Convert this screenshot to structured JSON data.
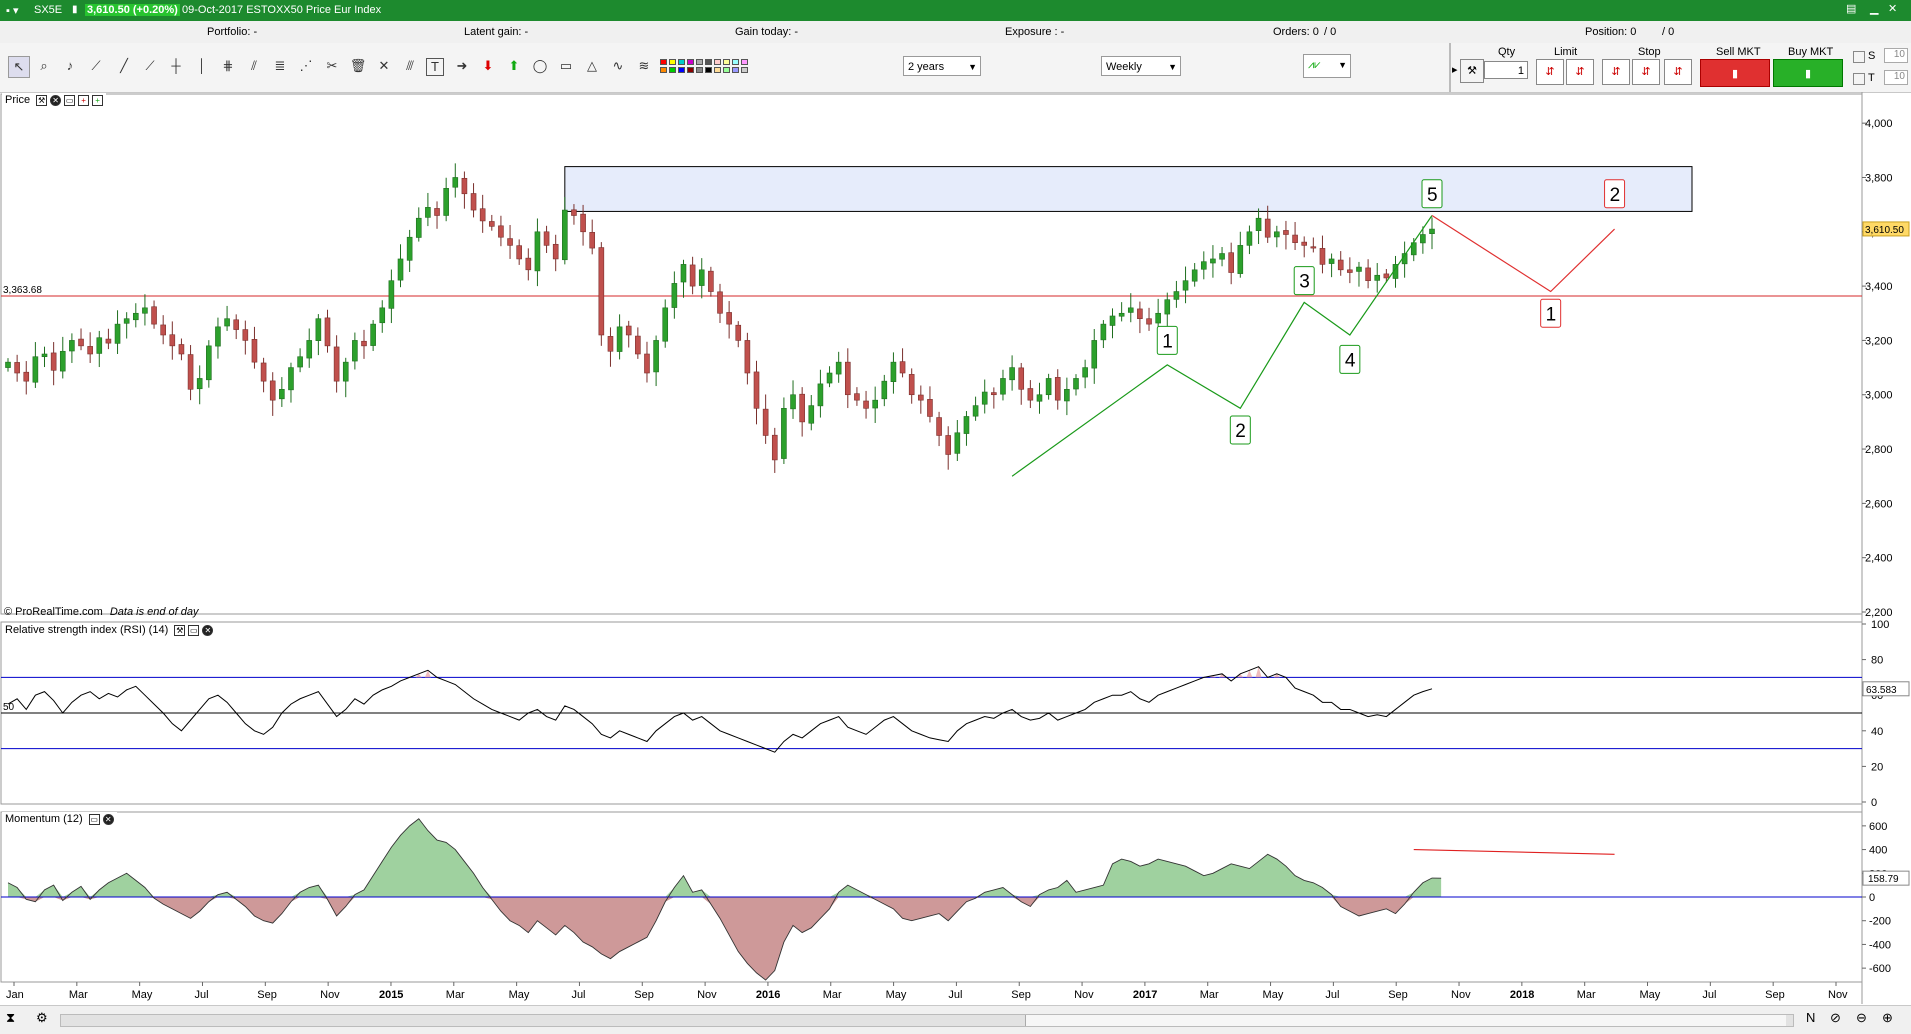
{
  "window": {
    "symbol": "SX5E",
    "price_change": "3,610.50 (+0.20%)",
    "title": "09-Oct-2017 ESTOXX50 Price Eur Index"
  },
  "infobar": {
    "portfolio": "Portfolio: -",
    "latent_gain": "Latent gain: -",
    "gain_today": "Gain today: -",
    "exposure": "Exposure : -",
    "orders": "Orders: 0",
    "orders_slash": "/ 0",
    "position": "Position: 0",
    "position_slash": "/ 0"
  },
  "toolbar": {
    "period": "2 years",
    "interval": "Weekly",
    "qty_label": "Qty",
    "qty_value": "1",
    "limit_label": "Limit",
    "stop_label": "Stop",
    "sell_label": "Sell MKT",
    "buy_label": "Buy MKT",
    "s_label": "S",
    "t_label": "T",
    "s_value": "10",
    "t_value": "10"
  },
  "colors": {
    "up": "#2ca02c",
    "down": "#c0504d",
    "support": "#d62728",
    "zone_fill": "#e6ecfb",
    "rsi_line": "#000000",
    "band": "#0000cc"
  },
  "price_panel": {
    "title": "Price",
    "footer_copyright": "© ProRealTime.com",
    "footer_note": "Data is end of day"
  },
  "rsi_panel": {
    "title": "Relative strength index (RSI) (14)"
  },
  "momentum_panel": {
    "title": "Momentum (12)"
  },
  "chart_data": [
    {
      "type": "candlestick",
      "title": "Price",
      "ylim": [
        2200,
        4100
      ],
      "yticks": [
        "4,000",
        "3,800",
        "3,600",
        "3,400",
        "3,200",
        "3,000",
        "2,800",
        "2,600",
        "2,400",
        "2,200"
      ],
      "last_value_label": "3,610.50",
      "last_value": 3610.5,
      "support_level": 3363.68,
      "support_label": "3,363.68",
      "resistance_zone": [
        3675,
        3840
      ],
      "weekly_close": [
        3120,
        3080,
        3050,
        3140,
        3150,
        3090,
        3160,
        3200,
        3180,
        3150,
        3210,
        3190,
        3260,
        3280,
        3300,
        3320,
        3260,
        3220,
        3180,
        3150,
        3020,
        3060,
        3180,
        3250,
        3280,
        3240,
        3200,
        3120,
        3050,
        2980,
        3020,
        3100,
        3140,
        3200,
        3280,
        3180,
        3050,
        3120,
        3200,
        3180,
        3260,
        3320,
        3420,
        3500,
        3580,
        3650,
        3690,
        3660,
        3760,
        3800,
        3740,
        3680,
        3640,
        3620,
        3580,
        3550,
        3500,
        3460,
        3600,
        3550,
        3500,
        3680,
        3660,
        3600,
        3540,
        3220,
        3160,
        3250,
        3220,
        3150,
        3080,
        3200,
        3320,
        3410,
        3480,
        3400,
        3460,
        3380,
        3300,
        3260,
        3200,
        3080,
        2950,
        2850,
        2760,
        2950,
        3000,
        2900,
        2960,
        3040,
        3080,
        3120,
        3000,
        2980,
        2950,
        2980,
        3050,
        3120,
        3080,
        3000,
        2980,
        2920,
        2850,
        2780,
        2860,
        2920,
        2960,
        3010,
        3000,
        3060,
        3100,
        3020,
        2980,
        3000,
        3060,
        2980,
        3020,
        3060,
        3100,
        3200,
        3260,
        3290,
        3300,
        3320,
        3280,
        3260,
        3300,
        3350,
        3380,
        3420,
        3460,
        3490,
        3500,
        3520,
        3450,
        3550,
        3600,
        3650,
        3580,
        3600,
        3590,
        3560,
        3550,
        3540,
        3480,
        3500,
        3460,
        3450,
        3470,
        3420,
        3440,
        3430,
        3480,
        3520,
        3560,
        3590,
        3610
      ],
      "wave_labels_green": [
        "1",
        "2",
        "3",
        "4",
        "5"
      ],
      "wave_labels_red": [
        "1",
        "2"
      ]
    },
    {
      "type": "line",
      "title": "Relative strength index (RSI) (14)",
      "ylim": [
        0,
        100
      ],
      "yticks": [
        "100",
        "80",
        "60",
        "40",
        "20",
        "0"
      ],
      "mid_label": "50",
      "bands": [
        70,
        50,
        30
      ],
      "last_value_label": "63.583",
      "values": [
        55,
        58,
        52,
        60,
        62,
        57,
        50,
        56,
        60,
        62,
        58,
        61,
        59,
        63,
        65,
        60,
        55,
        50,
        44,
        40,
        46,
        52,
        58,
        60,
        56,
        50,
        44,
        40,
        38,
        42,
        50,
        55,
        58,
        60,
        62,
        55,
        48,
        52,
        58,
        55,
        60,
        63,
        65,
        68,
        70,
        72,
        74,
        70,
        68,
        66,
        62,
        58,
        55,
        52,
        50,
        48,
        46,
        50,
        52,
        48,
        46,
        54,
        52,
        48,
        44,
        38,
        36,
        40,
        38,
        36,
        34,
        40,
        44,
        48,
        50,
        46,
        48,
        44,
        40,
        38,
        36,
        34,
        32,
        30,
        28,
        34,
        38,
        36,
        40,
        44,
        46,
        48,
        42,
        40,
        38,
        42,
        46,
        48,
        44,
        40,
        38,
        36,
        35,
        34,
        40,
        44,
        46,
        48,
        47,
        50,
        52,
        48,
        46,
        47,
        50,
        46,
        48,
        50,
        52,
        56,
        58,
        60,
        60,
        62,
        58,
        56,
        60,
        62,
        64,
        66,
        68,
        70,
        71,
        72,
        68,
        72,
        74,
        76,
        70,
        72,
        70,
        64,
        62,
        60,
        56,
        56,
        52,
        52,
        50,
        48,
        49,
        48,
        52,
        56,
        60,
        62,
        63.6
      ]
    },
    {
      "type": "area",
      "title": "Momentum (12)",
      "ylim": [
        -700,
        700
      ],
      "yticks": [
        "600",
        "400",
        "200",
        "0",
        "-200",
        "-400",
        "-600"
      ],
      "last_value_label": "158.79",
      "divergence_line": [
        400,
        360
      ],
      "values": [
        120,
        80,
        -20,
        -40,
        60,
        100,
        -30,
        40,
        90,
        -20,
        60,
        120,
        160,
        200,
        140,
        80,
        -10,
        -60,
        -100,
        -140,
        -180,
        -120,
        -40,
        20,
        40,
        -20,
        -80,
        -160,
        -200,
        -220,
        -140,
        -40,
        40,
        80,
        100,
        -20,
        -160,
        -80,
        20,
        60,
        180,
        300,
        420,
        520,
        600,
        660,
        560,
        480,
        460,
        400,
        300,
        200,
        80,
        -20,
        -120,
        -200,
        -240,
        -300,
        -200,
        -260,
        -320,
        -240,
        -300,
        -380,
        -420,
        -480,
        -520,
        -460,
        -420,
        -380,
        -340,
        -200,
        -40,
        80,
        180,
        40,
        60,
        -60,
        -180,
        -320,
        -460,
        -560,
        -640,
        -700,
        -620,
        -380,
        -240,
        -300,
        -260,
        -180,
        -100,
        40,
        100,
        60,
        20,
        -20,
        -60,
        -100,
        -180,
        -200,
        -180,
        -160,
        -140,
        -200,
        -120,
        -40,
        -10,
        40,
        60,
        80,
        20,
        -40,
        -80,
        20,
        60,
        80,
        140,
        40,
        60,
        80,
        100,
        280,
        320,
        300,
        260,
        280,
        320,
        300,
        280,
        260,
        220,
        180,
        200,
        240,
        280,
        260,
        240,
        300,
        360,
        320,
        260,
        180,
        140,
        120,
        80,
        20,
        -80,
        -120,
        -160,
        -140,
        -120,
        -100,
        -140,
        -60,
        40,
        120,
        160,
        159
      ]
    }
  ],
  "x_axis": {
    "labels": [
      "Jan",
      "Mar",
      "May",
      "Jul",
      "Sep",
      "Nov",
      "2015",
      "Mar",
      "May",
      "Jul",
      "Sep",
      "Nov",
      "2016",
      "Mar",
      "May",
      "Jul",
      "Sep",
      "Nov",
      "2017",
      "Mar",
      "May",
      "Jul",
      "Sep",
      "Nov",
      "2018",
      "Mar",
      "May",
      "Jul",
      "Sep",
      "Nov"
    ],
    "bold": [
      "2015",
      "2016",
      "2017",
      "2018"
    ]
  }
}
